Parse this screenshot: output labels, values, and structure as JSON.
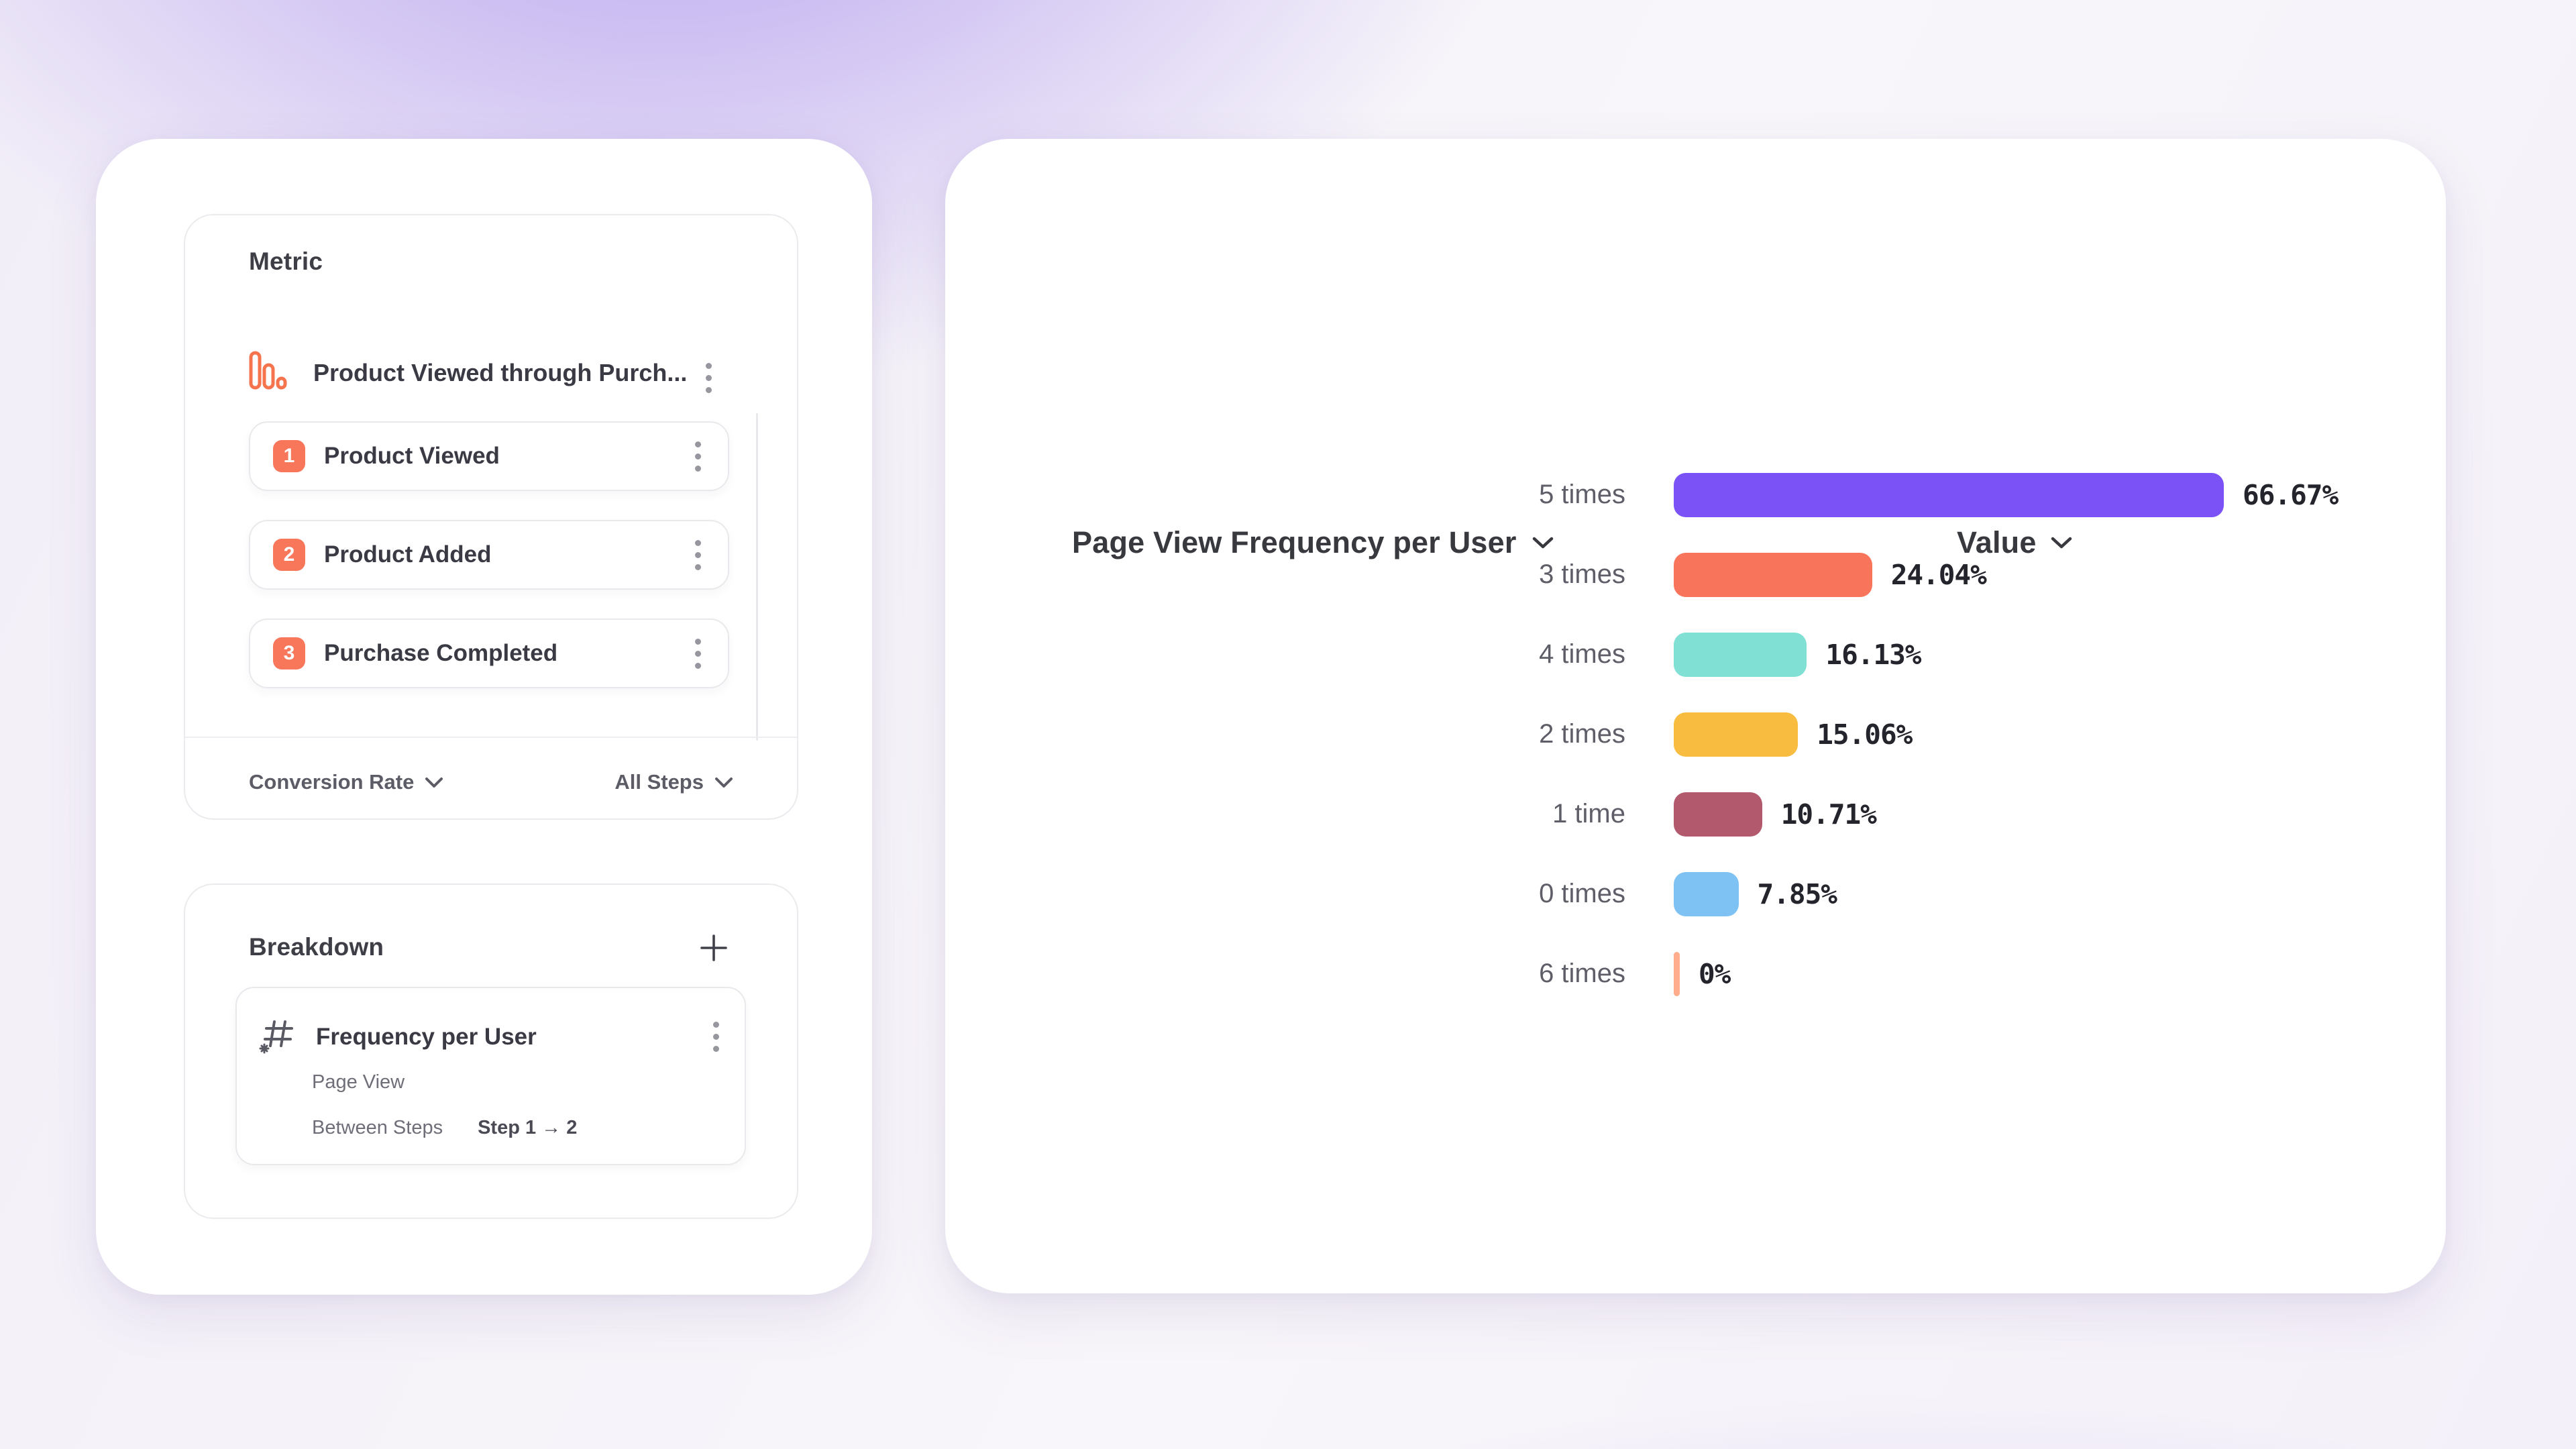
{
  "metric_panel": {
    "title": "Metric",
    "funnel_name": "Product Viewed through Purch...",
    "steps": [
      {
        "number": "1",
        "label": "Product Viewed"
      },
      {
        "number": "2",
        "label": "Product Added"
      },
      {
        "number": "3",
        "label": "Purchase Completed"
      }
    ],
    "conversion_dropdown": "Conversion Rate",
    "steps_dropdown": "All Steps"
  },
  "breakdown_panel": {
    "title": "Breakdown",
    "item": {
      "title": "Frequency per User",
      "event": "Page View",
      "between_label": "Between Steps",
      "between_value": "Step 1 → 2"
    }
  },
  "chart_panel": {
    "series_dropdown": "Page View Frequency per User",
    "value_dropdown": "Value"
  },
  "chart_data": {
    "type": "bar",
    "orientation": "horizontal",
    "title": "Page View Frequency per User",
    "value_axis_label": "Value",
    "categories": [
      "5 times",
      "3 times",
      "4 times",
      "2 times",
      "1 time",
      "0 times",
      "6 times"
    ],
    "values": [
      66.67,
      24.04,
      16.13,
      15.06,
      10.71,
      7.85,
      0
    ],
    "value_labels": [
      "66.67%",
      "24.04%",
      "16.13%",
      "15.06%",
      "10.71%",
      "7.85%",
      "0%"
    ],
    "bar_colors": [
      "#7A52F5",
      "#F8755B",
      "#80E0D3",
      "#F8BC40",
      "#B2596E",
      "#7EC2F4",
      "#FFAD8C"
    ],
    "xlim": [
      0,
      100
    ],
    "legend": "none",
    "grid": false
  },
  "icons": {
    "metric_type": "funnel-chart-icon",
    "row_menu": "kebab-menu-icon",
    "dropdown": "chevron-down-icon",
    "breakdown_add": "plus-icon",
    "breakdown_property": "numeric-property-icon"
  },
  "colors": {
    "accent_coral": "#F8765A",
    "accent_purple": "#7A52F5",
    "card_background": "#FFFFFF",
    "border": "#ECEAEE",
    "text_dark": "#3A3A44",
    "text_gray": "#6E6E78"
  }
}
